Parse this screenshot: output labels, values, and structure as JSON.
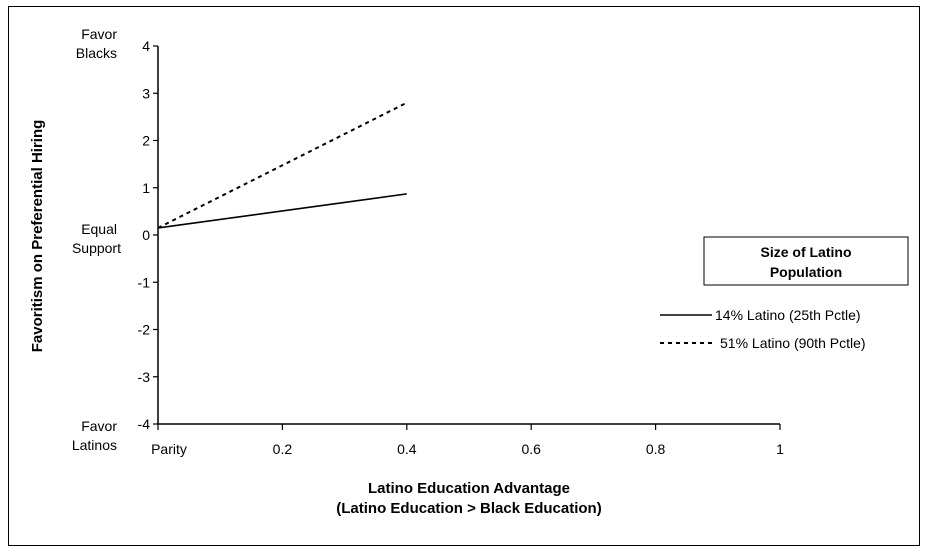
{
  "chart_data": {
    "type": "line",
    "xlabel": [
      "Latino Education Advantage",
      "(Latino Education > Black Education)"
    ],
    "ylabel": "Favoritism on Preferential Hiring",
    "xlim": [
      0,
      1
    ],
    "ylim": [
      -4,
      4
    ],
    "x_ticks": [
      "Parity",
      "0.2",
      "0.4",
      "0.6",
      "0.8",
      "1"
    ],
    "y_ticks": [
      "4",
      "3",
      "2",
      "1",
      "0",
      "-1",
      "-2",
      "-3",
      "-4"
    ],
    "y_annotations": {
      "top": [
        "Favor",
        "Blacks"
      ],
      "middle": [
        "Equal",
        "Support"
      ],
      "bottom": [
        "Favor",
        "Latinos"
      ]
    },
    "legend": {
      "title": [
        "Size of Latino",
        "Population"
      ],
      "position": "right"
    },
    "series": [
      {
        "name": "14% Latino (25th Pctle)",
        "style": "solid",
        "x": [
          0,
          0.4
        ],
        "y": [
          0.15,
          0.87
        ]
      },
      {
        "name": "51% Latino (90th Pctle)",
        "style": "dashed",
        "x": [
          0,
          0.4
        ],
        "y": [
          0.15,
          2.8
        ]
      }
    ]
  }
}
